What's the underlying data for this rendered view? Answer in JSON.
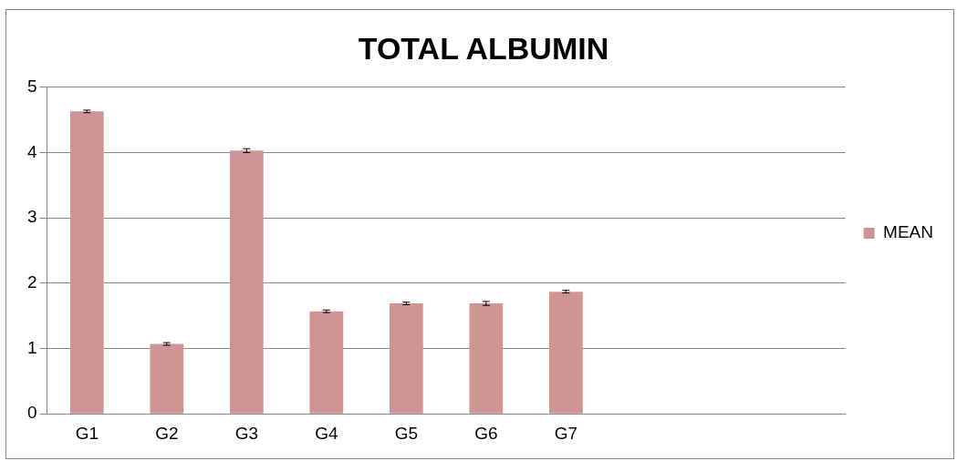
{
  "chart_data": {
    "type": "bar",
    "title": "TOTAL ALBUMIN",
    "categories": [
      "G1",
      "G2",
      "G3",
      "G4",
      "G5",
      "G6",
      "G7",
      null,
      null,
      null
    ],
    "series": [
      {
        "name": "MEAN",
        "color": "#d09492",
        "values": [
          4.63,
          1.07,
          4.03,
          1.57,
          1.69,
          1.69,
          1.87,
          null,
          null,
          null
        ],
        "errors": [
          0.02,
          0.02,
          0.03,
          0.02,
          0.02,
          0.03,
          0.02,
          null,
          null,
          null
        ]
      }
    ],
    "ylim": [
      0,
      5
    ],
    "yticks": [
      0,
      1,
      2,
      3,
      4,
      5
    ],
    "grid": "y",
    "legend": "right"
  }
}
